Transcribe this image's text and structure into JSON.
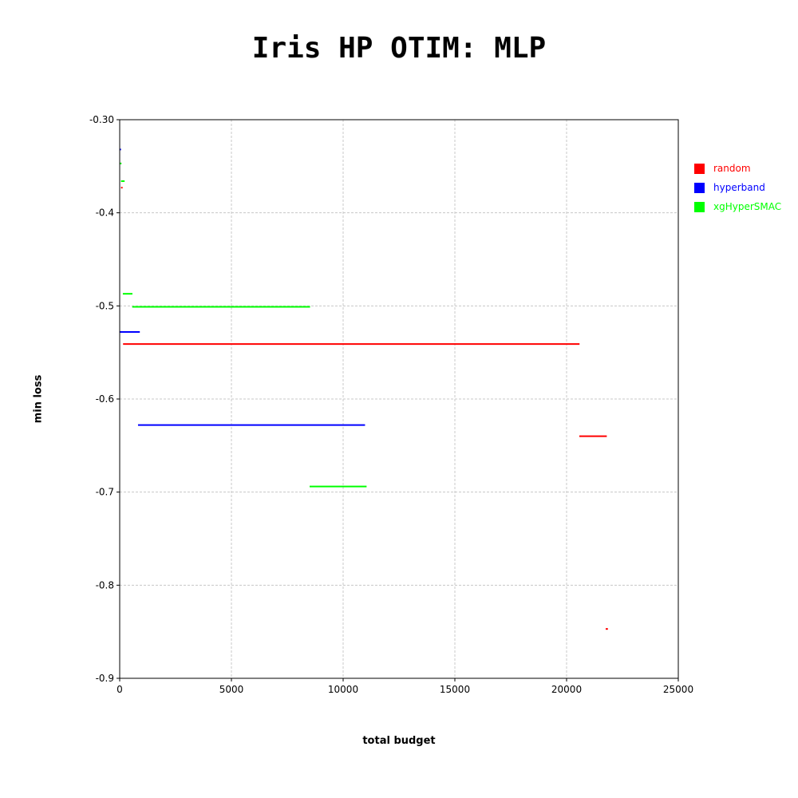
{
  "chart_data": {
    "type": "line",
    "title": "Iris HP OTIM: MLP",
    "xlabel": "total budget",
    "ylabel": "min loss",
    "xlim": [
      0,
      25000
    ],
    "ylim": [
      -0.9,
      -0.3
    ],
    "x_ticks": [
      0,
      5000,
      10000,
      15000,
      20000,
      25000
    ],
    "y_ticks": [
      -0.3,
      -0.4,
      -0.5,
      -0.6,
      -0.7,
      -0.8,
      -0.9
    ],
    "x_tick_labels": [
      "0",
      "5000",
      "10000",
      "15000",
      "20000",
      "25000"
    ],
    "y_tick_labels": [
      "-0.30",
      "-0.4",
      "-0.5",
      "-0.6",
      "-0.7",
      "-0.8",
      "-0.9"
    ],
    "grid": true,
    "legend_position": "right",
    "series": [
      {
        "name": "random",
        "color": "#ff0000",
        "segments": [
          {
            "x": [
              60,
              130
            ],
            "y": -0.373
          },
          {
            "x": [
              150,
              20580
            ],
            "y": -0.541
          },
          {
            "x": [
              20570,
              21800
            ],
            "y": -0.64
          },
          {
            "x": [
              21750,
              21850
            ],
            "y": -0.847
          }
        ]
      },
      {
        "name": "hyperband",
        "color": "#0000ff",
        "segments": [
          {
            "x": [
              0,
              60
            ],
            "y": -0.332
          },
          {
            "x": [
              0,
              900
            ],
            "y": -0.528
          },
          {
            "x": [
              820,
              10980
            ],
            "y": -0.628
          }
        ]
      },
      {
        "name": "xgHyperSMAC",
        "color": "#00ff00",
        "segments": [
          {
            "x": [
              0,
              80
            ],
            "y": -0.347
          },
          {
            "x": [
              60,
              220
            ],
            "y": -0.366
          },
          {
            "x": [
              140,
              570
            ],
            "y": -0.487
          },
          {
            "x": [
              560,
              8520
            ],
            "y": -0.501
          },
          {
            "x": [
              8500,
              11050
            ],
            "y": -0.694
          }
        ]
      }
    ]
  }
}
